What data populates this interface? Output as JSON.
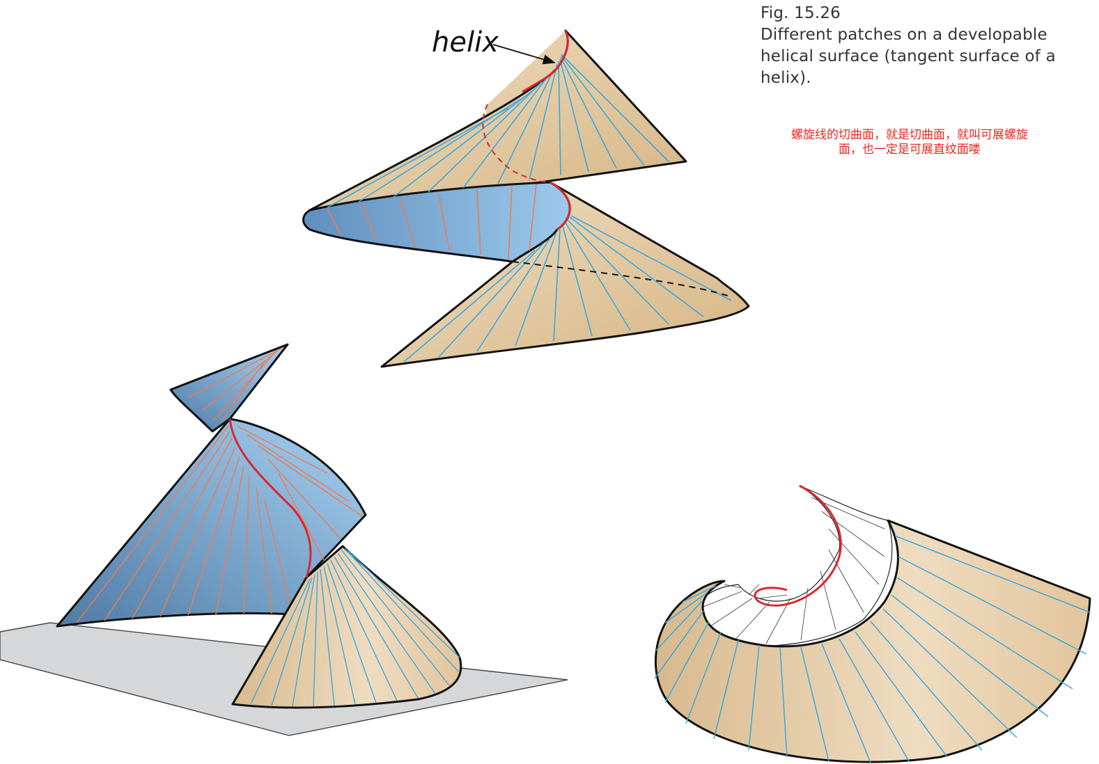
{
  "caption": {
    "fig": "Fig. 15.26",
    "line1": "Different patches on a developable",
    "line2": "helical surface (tangent surface of a",
    "line3": "helix)."
  },
  "annotation": {
    "line1": "螺旋线的切曲面，就是切曲面，就叫可展螺旋",
    "line2": "面，也一定是可展直纹面喽"
  },
  "helix_label": "helix",
  "colors": {
    "tan_fill": "#e3c9a0",
    "blue_fill": "#86b9df",
    "ruling_blue": "#3aa7dd",
    "ruling_orange": "#ef7a52",
    "helix_red": "#d9272d",
    "ground_plane": "#d6d7d9",
    "outline": "#111111"
  }
}
